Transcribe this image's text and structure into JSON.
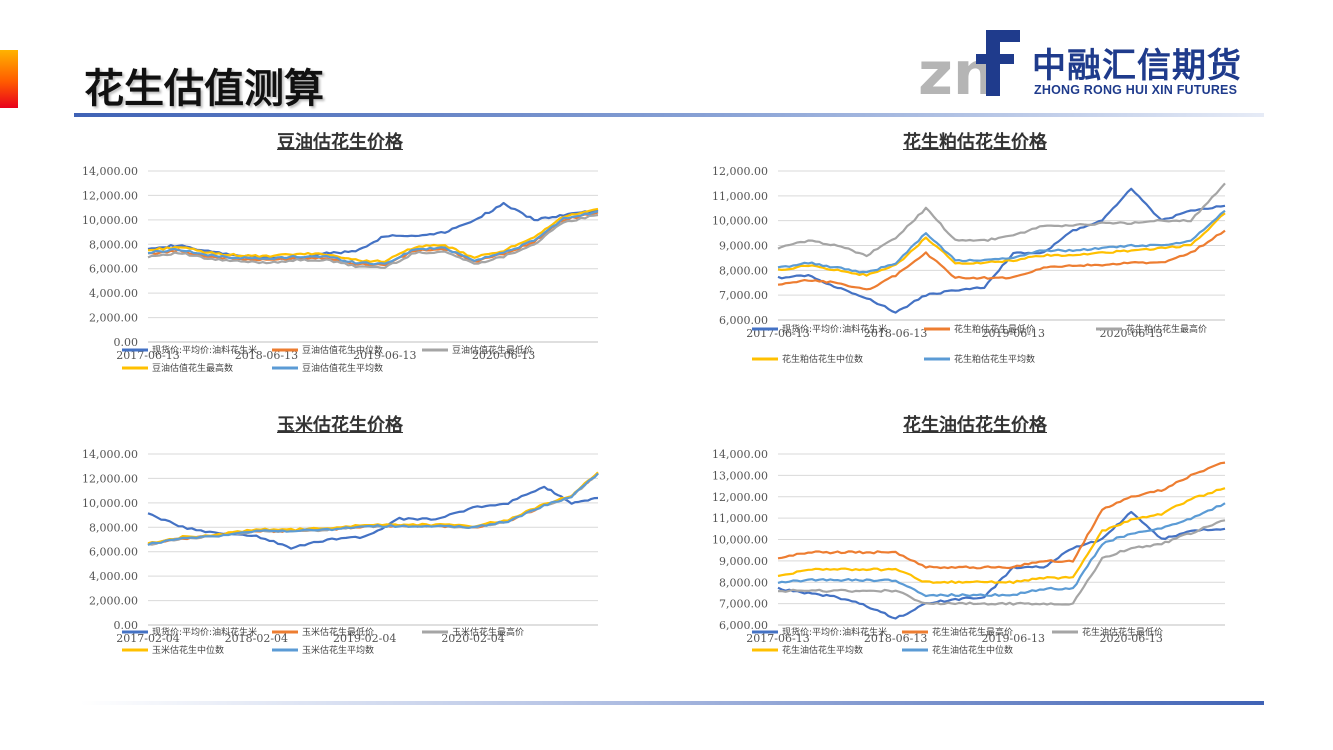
{
  "page": {
    "title": "花生估值测算"
  },
  "logo": {
    "mark": "znf",
    "cn": "中融汇信期货",
    "en": "ZHONG RONG HUI XIN FUTURES"
  },
  "colors": {
    "blue": "#4472C4",
    "orange": "#ED7D31",
    "gray": "#A5A5A5",
    "yellow": "#FFC000",
    "lightblue": "#5B9BD5"
  },
  "chart_data": [
    {
      "type": "line",
      "title": "豆油估花生价格",
      "ylim": [
        0,
        14000
      ],
      "yticks": [
        0,
        2000,
        4000,
        6000,
        8000,
        10000,
        12000,
        14000
      ],
      "ytick_labels": [
        "0.00",
        "2,000.00",
        "4,000.00",
        "6,000.00",
        "8,000.00",
        "10,000.00",
        "12,000.00",
        "14,000.00"
      ],
      "xlim": [
        "2017-06-13",
        "2021-03-31"
      ],
      "xticks": [
        "2017-06-13",
        "2018-06-13",
        "2019-06-13",
        "2020-06-13"
      ],
      "x": [
        "2017-06-13",
        "2017-09-15",
        "2017-12-15",
        "2018-03-15",
        "2018-06-13",
        "2018-09-15",
        "2018-12-15",
        "2019-03-15",
        "2019-06-13",
        "2019-09-15",
        "2019-12-15",
        "2020-03-15",
        "2020-06-13",
        "2020-09-15",
        "2020-12-15",
        "2021-03-31"
      ],
      "series": [
        {
          "name": "现货价:平均价:油料花生米",
          "color": "#4472C4",
          "values": [
            7700,
            7900,
            7400,
            7100,
            6900,
            6800,
            7300,
            7400,
            8700,
            8700,
            9000,
            10000,
            11300,
            10000,
            10400,
            10800
          ]
        },
        {
          "name": "豆油估值花生中位数",
          "color": "#ED7D31",
          "values": [
            7200,
            7500,
            7000,
            6800,
            6700,
            6900,
            6900,
            6400,
            6300,
            7500,
            7600,
            6600,
            7200,
            8200,
            10000,
            10600
          ]
        },
        {
          "name": "豆油估值花生最低价",
          "color": "#A5A5A5",
          "values": [
            7000,
            7300,
            6800,
            6600,
            6500,
            6700,
            6700,
            6200,
            6100,
            7300,
            7400,
            6400,
            7000,
            8000,
            9800,
            10400
          ]
        },
        {
          "name": "豆油估值花生最高数",
          "color": "#FFC000",
          "values": [
            7500,
            7800,
            7300,
            7100,
            7000,
            7200,
            7200,
            6700,
            6600,
            7800,
            7900,
            6900,
            7500,
            8500,
            10300,
            10900
          ]
        },
        {
          "name": "豆油估值花生平均数",
          "color": "#5B9BD5",
          "values": [
            7300,
            7600,
            7100,
            6900,
            6800,
            7000,
            7000,
            6500,
            6400,
            7600,
            7700,
            6700,
            7300,
            8300,
            10100,
            10700
          ]
        }
      ]
    },
    {
      "type": "line",
      "title": "花生粕估花生价格",
      "ylim": [
        6000,
        12000
      ],
      "yticks": [
        6000,
        7000,
        8000,
        9000,
        10000,
        11000,
        12000
      ],
      "ytick_labels": [
        "6,000.00",
        "7,000.00",
        "8,000.00",
        "9,000.00",
        "10,000.00",
        "11,000.00",
        "12,000.00"
      ],
      "xlim": [
        "2017-06-13",
        "2021-03-31"
      ],
      "xticks": [
        "2017-06-13",
        "2018-06-13",
        "2019-06-13",
        "2020-06-13"
      ],
      "x": [
        "2017-06-13",
        "2017-09-15",
        "2017-12-15",
        "2018-03-15",
        "2018-06-13",
        "2018-09-15",
        "2018-12-15",
        "2019-03-15",
        "2019-06-13",
        "2019-09-15",
        "2019-12-15",
        "2020-03-15",
        "2020-06-13",
        "2020-09-15",
        "2020-12-15",
        "2021-03-31"
      ],
      "series": [
        {
          "name": "现货价:平均价:油料花生米",
          "color": "#4472C4",
          "values": [
            7700,
            7800,
            7300,
            6900,
            6300,
            7000,
            7200,
            7300,
            8700,
            8700,
            9600,
            10000,
            11300,
            10000,
            10400,
            10600
          ]
        },
        {
          "name": "花生粕估花生最低价",
          "color": "#ED7D31",
          "values": [
            7400,
            7600,
            7500,
            7200,
            7800,
            8700,
            7700,
            7700,
            7700,
            8100,
            8200,
            8200,
            8300,
            8300,
            8700,
            9600
          ]
        },
        {
          "name": "花生粕估花生最高价",
          "color": "#A5A5A5",
          "values": [
            8900,
            9200,
            9000,
            8600,
            9300,
            10500,
            9200,
            9200,
            9400,
            9800,
            9800,
            9900,
            9900,
            10000,
            10000,
            11500
          ]
        },
        {
          "name": "花生粕估花生中位数",
          "color": "#FFC000",
          "values": [
            8000,
            8200,
            8000,
            7800,
            8200,
            9300,
            8300,
            8300,
            8400,
            8600,
            8600,
            8700,
            8800,
            8900,
            9000,
            10300
          ]
        },
        {
          "name": "花生粕估花生平均数",
          "color": "#5B9BD5",
          "values": [
            8100,
            8300,
            8100,
            7900,
            8300,
            9500,
            8400,
            8400,
            8500,
            8800,
            8800,
            8900,
            9000,
            9000,
            9200,
            10400
          ]
        }
      ]
    },
    {
      "type": "line",
      "title": "玉米估花生价格",
      "ylim": [
        0,
        14000
      ],
      "yticks": [
        0,
        2000,
        4000,
        6000,
        8000,
        10000,
        12000,
        14000
      ],
      "ytick_labels": [
        "0.00",
        "2,000.00",
        "4,000.00",
        "6,000.00",
        "8,000.00",
        "10,000.00",
        "12,000.00",
        "14,000.00"
      ],
      "xlim": [
        "2017-02-04",
        "2021-03-31"
      ],
      "xticks": [
        "2017-02-04",
        "2018-02-04",
        "2019-02-04",
        "2020-02-04"
      ],
      "x": [
        "2017-02-04",
        "2017-06-01",
        "2017-10-01",
        "2018-02-04",
        "2018-06-01",
        "2018-10-01",
        "2019-02-04",
        "2019-06-01",
        "2019-10-01",
        "2020-02-04",
        "2020-06-01",
        "2020-10-01",
        "2021-01-01",
        "2021-03-31"
      ],
      "series": [
        {
          "name": "现货价:平均价:油料花生米",
          "color": "#4472C4",
          "values": [
            9100,
            8000,
            7500,
            7300,
            6300,
            7000,
            7200,
            8700,
            8700,
            9600,
            10000,
            11300,
            10000,
            10400
          ]
        },
        {
          "name": "玉米估花生最低价",
          "color": "#ED7D31",
          "values": [
            6600,
            7100,
            7300,
            7700,
            7700,
            7800,
            8100,
            8100,
            8100,
            8000,
            8500,
            9800,
            10500,
            12400
          ]
        },
        {
          "name": "玉米估花生最高价",
          "color": "#A5A5A5",
          "values": [
            6600,
            7100,
            7300,
            7700,
            7700,
            7800,
            8100,
            8100,
            8100,
            8000,
            8500,
            9800,
            10500,
            12400
          ]
        },
        {
          "name": "玉米估花生中位数",
          "color": "#FFC000",
          "values": [
            6700,
            7200,
            7400,
            7800,
            7800,
            7900,
            8200,
            8200,
            8200,
            8100,
            8600,
            9900,
            10600,
            12500
          ]
        },
        {
          "name": "玉米估花生平均数",
          "color": "#5B9BD5",
          "values": [
            6600,
            7100,
            7300,
            7700,
            7700,
            7800,
            8100,
            8100,
            8100,
            8000,
            8500,
            9800,
            10500,
            12400
          ]
        }
      ]
    },
    {
      "type": "line",
      "title": "花生油估花生价格",
      "ylim": [
        6000,
        14000
      ],
      "yticks": [
        6000,
        7000,
        8000,
        9000,
        10000,
        11000,
        12000,
        13000,
        14000
      ],
      "ytick_labels": [
        "6,000.00",
        "7,000.00",
        "8,000.00",
        "9,000.00",
        "10,000.00",
        "11,000.00",
        "12,000.00",
        "13,000.00",
        "14,000.00"
      ],
      "xlim": [
        "2017-06-13",
        "2021-03-31"
      ],
      "xticks": [
        "2017-06-13",
        "2018-06-13",
        "2019-06-13",
        "2020-06-13"
      ],
      "x": [
        "2017-06-13",
        "2017-09-15",
        "2017-12-15",
        "2018-03-15",
        "2018-06-13",
        "2018-09-15",
        "2018-12-15",
        "2019-03-15",
        "2019-06-13",
        "2019-09-15",
        "2019-12-15",
        "2020-03-15",
        "2020-06-13",
        "2020-09-15",
        "2020-12-15",
        "2021-03-31"
      ],
      "series": [
        {
          "name": "现货价:平均价:油料花生米",
          "color": "#4472C4",
          "values": [
            7700,
            7500,
            7300,
            6900,
            6300,
            7000,
            7200,
            7300,
            8700,
            8700,
            9600,
            10000,
            11300,
            10000,
            10400,
            10500
          ]
        },
        {
          "name": "花生油估花生最高价",
          "color": "#ED7D31",
          "values": [
            9100,
            9400,
            9400,
            9400,
            9400,
            8700,
            8700,
            8700,
            8700,
            9000,
            9000,
            11400,
            12000,
            12300,
            13000,
            13600
          ]
        },
        {
          "name": "花生油估花生最低价",
          "color": "#A5A5A5",
          "values": [
            7600,
            7600,
            7600,
            7600,
            7600,
            7000,
            7000,
            7000,
            7000,
            7000,
            7000,
            9100,
            9600,
            9800,
            10300,
            10900
          ]
        },
        {
          "name": "花生油估花生平均数",
          "color": "#FFC000",
          "values": [
            8300,
            8600,
            8600,
            8600,
            8600,
            8000,
            8000,
            8000,
            8000,
            8200,
            8200,
            10400,
            10900,
            11200,
            11900,
            12400
          ]
        },
        {
          "name": "花生油估花生中位数",
          "color": "#5B9BD5",
          "values": [
            8000,
            8100,
            8100,
            8100,
            8100,
            7400,
            7400,
            7400,
            7400,
            7700,
            7700,
            9800,
            10300,
            10500,
            11000,
            11700
          ]
        }
      ]
    }
  ]
}
